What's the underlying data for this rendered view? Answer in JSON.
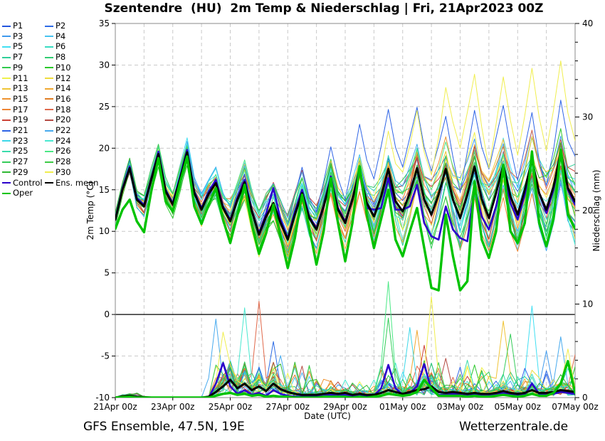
{
  "title": {
    "text": "Szentendre  (HU)  2m Temp & Niederschlag | Fri, 21Apr2023 00Z"
  },
  "footer": {
    "left": "GFS Ensemble, 47.5N, 19E",
    "right": "Wetterzentrale.de"
  },
  "legend": {
    "members": [
      {
        "label": "P1",
        "color": "#2355dd"
      },
      {
        "label": "P2",
        "color": "#2d6ce6"
      },
      {
        "label": "P3",
        "color": "#3f9aee"
      },
      {
        "label": "P4",
        "color": "#47c3f0"
      },
      {
        "label": "P5",
        "color": "#41dff2"
      },
      {
        "label": "P6",
        "color": "#38dcc2"
      },
      {
        "label": "P7",
        "color": "#30cf98"
      },
      {
        "label": "P8",
        "color": "#32cc71"
      },
      {
        "label": "P9",
        "color": "#2fca4e"
      },
      {
        "label": "P10",
        "color": "#29c829"
      },
      {
        "label": "P11",
        "color": "#eef04b"
      },
      {
        "label": "P12",
        "color": "#eedc3d"
      },
      {
        "label": "P13",
        "color": "#efc437"
      },
      {
        "label": "P14",
        "color": "#f0a831"
      },
      {
        "label": "P15",
        "color": "#ee9230"
      },
      {
        "label": "P16",
        "color": "#e07e24"
      },
      {
        "label": "P17",
        "color": "#ee8433"
      },
      {
        "label": "P18",
        "color": "#e0684a"
      },
      {
        "label": "P19",
        "color": "#cc4136"
      },
      {
        "label": "P20",
        "color": "#b44a42"
      },
      {
        "label": "P21",
        "color": "#2e64e6"
      },
      {
        "label": "P22",
        "color": "#47aaee"
      },
      {
        "label": "P23",
        "color": "#3dd8e8"
      },
      {
        "label": "P24",
        "color": "#49e8d0"
      },
      {
        "label": "P25",
        "color": "#39dcab"
      },
      {
        "label": "P26",
        "color": "#4be885"
      },
      {
        "label": "P27",
        "color": "#35cc59"
      },
      {
        "label": "P28",
        "color": "#3dca45"
      },
      {
        "label": "P29",
        "color": "#2fb833"
      },
      {
        "label": "P30",
        "color": "#f0ee4e"
      }
    ],
    "control": {
      "label": "Control",
      "color": "#2b00cc"
    },
    "ens_mean": {
      "label": "Ens. mean",
      "color": "#000000"
    },
    "oper": {
      "label": "Oper",
      "color": "#00c300"
    }
  },
  "axes": {
    "left": {
      "label": "2m Temp (°C)",
      "ticks": [
        35,
        30,
        25,
        20,
        15,
        10,
        5,
        0,
        -5,
        -10
      ],
      "range": [
        -10,
        35
      ]
    },
    "right": {
      "label": "Niederschlag (mm)",
      "major_ticks": [
        0,
        10,
        20,
        30,
        40
      ],
      "minor_step": 2,
      "range": [
        0,
        40
      ]
    },
    "x": {
      "label": "Date (UTC)",
      "tick_labels": [
        "21Apr 00z",
        "23Apr 00z",
        "25Apr 00z",
        "27Apr 00z",
        "29Apr 00z",
        "01May 00z",
        "03May 00z",
        "05May 00z",
        "07May 00z"
      ],
      "tick_days": [
        0,
        2,
        4,
        6,
        8,
        10,
        12,
        14,
        16
      ],
      "total_days": 16,
      "step_hours": 6
    }
  },
  "chart_data": {
    "type": "line",
    "title": "Szentendre  (HU)  2m Temp & Niederschlag | Fri, 21Apr2023 00Z",
    "xlabel": "Date (UTC)",
    "ylabel_left": "2m Temp (°C)",
    "ylabel_right": "Niederschlag (mm)",
    "ylim_temp": [
      -10,
      35
    ],
    "ylim_precip": [
      0,
      40
    ],
    "x_hours_start": 0,
    "x_hours_end": 384,
    "x_step_hours": 6,
    "grid": "dashed-daily-and-5deg",
    "zero_line_temp": 0,
    "series": {
      "ens_mean_temp": [
        11.4,
        15.0,
        17.6,
        13.8,
        13.0,
        16.2,
        19.3,
        14.8,
        13.2,
        16.3,
        19.5,
        14.6,
        12.6,
        14.5,
        15.8,
        12.8,
        11.2,
        13.8,
        15.9,
        12.4,
        9.6,
        11.8,
        13.4,
        11.0,
        9.0,
        12.0,
        14.6,
        11.6,
        10.2,
        13.0,
        16.2,
        12.6,
        11.0,
        13.8,
        17.3,
        13.4,
        11.8,
        14.2,
        17.5,
        13.6,
        12.4,
        14.6,
        17.6,
        13.8,
        12.0,
        14.4,
        17.5,
        13.8,
        11.6,
        14.4,
        17.8,
        13.9,
        11.6,
        14.6,
        18.0,
        14.2,
        12.0,
        15.0,
        18.6,
        14.6,
        12.6,
        15.4,
        19.5,
        15.2,
        13.6
      ],
      "control_temp": [
        11.5,
        15.2,
        17.8,
        14.0,
        13.2,
        16.4,
        19.6,
        15.0,
        13.4,
        16.5,
        19.8,
        14.8,
        12.8,
        14.8,
        16.2,
        13.0,
        11.4,
        14.0,
        16.2,
        12.6,
        9.8,
        12.2,
        15.2,
        11.4,
        9.2,
        12.4,
        15.0,
        11.8,
        10.4,
        13.2,
        16.6,
        12.8,
        11.2,
        14.0,
        17.6,
        12.8,
        12.6,
        12.8,
        16.4,
        12.6,
        12.6,
        13.0,
        15.6,
        11.0,
        9.4,
        9.0,
        13.0,
        10.2,
        9.2,
        8.8,
        15.4,
        11.8,
        10.2,
        13.0,
        17.2,
        13.4,
        11.4,
        14.4,
        18.8,
        14.6,
        12.2,
        15.0,
        19.4,
        15.0,
        13.2
      ],
      "oper_temp": [
        10.3,
        12.6,
        13.8,
        11.2,
        9.9,
        14.8,
        18.8,
        13.6,
        12.4,
        15.8,
        19.0,
        13.0,
        10.9,
        13.2,
        15.2,
        11.4,
        8.6,
        12.0,
        15.6,
        10.8,
        7.3,
        9.8,
        13.2,
        9.4,
        5.6,
        9.2,
        14.4,
        10.4,
        6.0,
        10.0,
        16.4,
        11.0,
        6.4,
        11.0,
        17.8,
        12.0,
        8.0,
        11.5,
        15.0,
        9.0,
        7.0,
        10.0,
        12.8,
        8.0,
        3.2,
        2.9,
        12.0,
        7.0,
        2.9,
        4.0,
        16.0,
        9.0,
        6.8,
        10.0,
        18.0,
        10.0,
        8.6,
        11.0,
        19.6,
        11.0,
        8.2,
        11.5,
        19.8,
        12.0,
        10.3
      ],
      "ens_mean_precip": [
        0,
        0.15,
        0.2,
        0.1,
        0.05,
        0,
        0,
        0,
        0,
        0,
        0,
        0,
        0,
        0.1,
        0.6,
        1.2,
        1.9,
        1.0,
        1.5,
        0.8,
        1.2,
        0.7,
        1.5,
        0.9,
        0.6,
        0.4,
        0.3,
        0.3,
        0.3,
        0.4,
        0.5,
        0.4,
        0.5,
        0.3,
        0.4,
        0.3,
        0.3,
        0.5,
        0.8,
        0.6,
        0.4,
        0.6,
        0.8,
        0.9,
        1.2,
        0.6,
        0.5,
        0.6,
        0.5,
        0.4,
        0.5,
        0.4,
        0.4,
        0.5,
        0.7,
        0.5,
        0.4,
        0.5,
        0.8,
        0.5,
        0.5,
        0.6,
        0.8,
        0.7,
        0.6
      ],
      "control_precip": [
        0,
        0.1,
        0.1,
        0,
        0,
        0,
        0,
        0,
        0,
        0,
        0,
        0,
        0,
        0,
        1.5,
        3.7,
        1.2,
        0.4,
        0.8,
        0.3,
        0.5,
        0.2,
        0.8,
        0.4,
        0.2,
        0.1,
        0.1,
        0.1,
        0.1,
        0.2,
        0.3,
        0.2,
        0.3,
        0.1,
        0.2,
        0.1,
        0.2,
        1.0,
        3.5,
        1.0,
        0.3,
        0.5,
        1.2,
        3.6,
        0.8,
        0.3,
        0.3,
        0.4,
        0.3,
        0.2,
        0.3,
        0.2,
        0.2,
        0.3,
        0.5,
        0.3,
        0.2,
        0.3,
        1.5,
        0.4,
        0.3,
        0.4,
        0.6,
        0.5,
        0.4
      ],
      "oper_precip": [
        0,
        0.05,
        0.1,
        0,
        0,
        0,
        0,
        0,
        0,
        0,
        0,
        0,
        0,
        0,
        0.2,
        0.4,
        0.5,
        0.3,
        0.4,
        0.2,
        0.3,
        0.1,
        0.2,
        0.1,
        0.1,
        0,
        0,
        0,
        0,
        0.1,
        0.1,
        0.1,
        0.1,
        0,
        0.1,
        0,
        0.1,
        0.2,
        0.4,
        0.3,
        0.2,
        0.3,
        0.6,
        1.9,
        1.0,
        0.2,
        0.2,
        0.2,
        0.2,
        0.1,
        0.2,
        0.1,
        0.1,
        0.2,
        0.3,
        0.2,
        0.1,
        0.2,
        0.4,
        0.2,
        0.2,
        0.5,
        1.5,
        3.9,
        0.5
      ]
    },
    "ensemble": {
      "n_members": 30,
      "spread_daily": [
        1.0,
        1.3,
        1.5,
        2.0,
        2.6,
        3.0,
        3.2,
        3.0,
        3.2,
        3.5,
        4.0,
        4.3,
        4.6,
        4.6,
        4.6,
        5.0,
        5.0
      ],
      "outliers": [
        {
          "member_index": 29,
          "ramp_start": 32,
          "ramp_len": 16,
          "base": 7.5,
          "day_amp": 3.5
        },
        {
          "member_index": 20,
          "ramp_start": 20,
          "ramp_len": 16,
          "base": 4.5,
          "day_amp": 2.0
        }
      ],
      "precip_events": [
        {
          "member_index": 21,
          "t_index": 14,
          "mm": 8.4
        },
        {
          "member_index": 29,
          "t_index": 15,
          "mm": 7.0
        },
        {
          "member_index": 23,
          "t_index": 18,
          "mm": 9.6
        },
        {
          "member_index": 17,
          "t_index": 20,
          "mm": 10.3
        },
        {
          "member_index": 1,
          "t_index": 22,
          "mm": 6.0
        },
        {
          "member_index": 21,
          "t_index": 23,
          "mm": 4.5
        },
        {
          "member_index": 25,
          "t_index": 38,
          "mm": 12.4
        },
        {
          "member_index": 26,
          "t_index": 38,
          "mm": 8.5
        },
        {
          "member_index": 22,
          "t_index": 41,
          "mm": 7.5
        },
        {
          "member_index": 13,
          "t_index": 42,
          "mm": 7.2
        },
        {
          "member_index": 18,
          "t_index": 43,
          "mm": 5.6
        },
        {
          "member_index": 29,
          "t_index": 44,
          "mm": 10.8
        },
        {
          "member_index": 19,
          "t_index": 46,
          "mm": 4.2
        },
        {
          "member_index": 24,
          "t_index": 49,
          "mm": 4.0
        },
        {
          "member_index": 9,
          "t_index": 50,
          "mm": 3.5
        },
        {
          "member_index": 12,
          "t_index": 54,
          "mm": 8.2
        },
        {
          "member_index": 26,
          "t_index": 55,
          "mm": 6.8
        },
        {
          "member_index": 4,
          "t_index": 58,
          "mm": 9.8
        },
        {
          "member_index": 2,
          "t_index": 60,
          "mm": 5.0
        },
        {
          "member_index": 21,
          "t_index": 62,
          "mm": 6.5
        },
        {
          "member_index": 29,
          "t_index": 63,
          "mm": 5.2
        },
        {
          "member_index": 17,
          "t_index": 64,
          "mm": 4.6
        }
      ],
      "wet_windows": [
        {
          "t_start": 1,
          "t_end": 3,
          "mm_max": 0.5
        },
        {
          "t_start": 14,
          "t_end": 27,
          "mm_max": 4.0
        },
        {
          "t_start": 28,
          "t_end": 36,
          "mm_max": 2.0
        },
        {
          "t_start": 37,
          "t_end": 47,
          "mm_max": 4.0
        },
        {
          "t_start": 48,
          "t_end": 64,
          "mm_max": 3.5
        }
      ]
    }
  }
}
